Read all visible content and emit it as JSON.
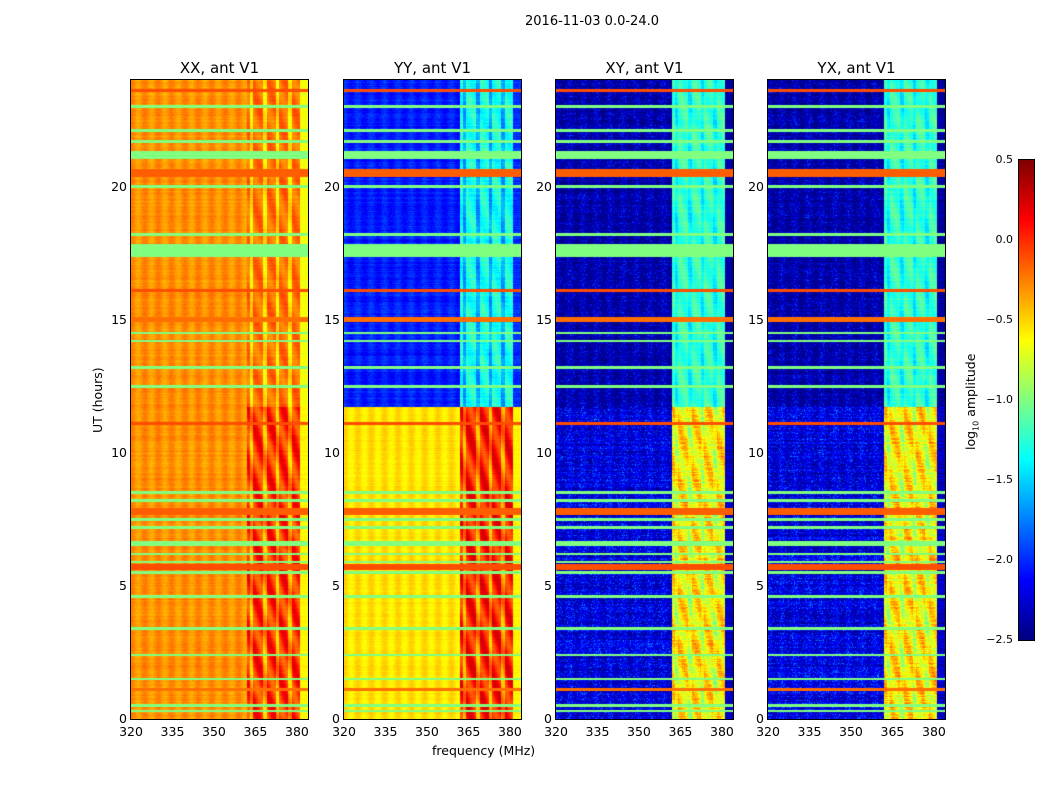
{
  "suptitle": "2016-11-03 0.0-24.0",
  "chart_data": {
    "type": "heatmap",
    "xlabel": "frequency (MHz)",
    "ylabel": "UT (hours)",
    "xlim": [
      320,
      384
    ],
    "ylim": [
      0,
      24
    ],
    "xticks": [
      "320",
      "335",
      "350",
      "365",
      "380"
    ],
    "xtick_values": [
      320,
      335,
      350,
      365,
      380
    ],
    "yticks": [
      "0",
      "5",
      "10",
      "15",
      "20"
    ],
    "ytick_values": [
      0,
      5,
      10,
      15,
      20
    ],
    "colorbar": {
      "label": "log10 amplitude",
      "label_main": "log",
      "label_sub": "10",
      "label_rest": " amplitude",
      "range": [
        -2.5,
        0.5
      ],
      "ticks": [
        "0.5",
        "0.0",
        "−0.5",
        "−1.0",
        "−1.5",
        "−2.0",
        "−2.5"
      ],
      "tick_values": [
        0.5,
        0,
        -0.5,
        -1,
        -1.5,
        -2,
        -2.5
      ],
      "colormap": "jet"
    },
    "panels": [
      {
        "title": "XX, ant V1",
        "segments": [
          {
            "t": [
              0,
              11.7
            ],
            "low": -0.3,
            "high": 0.0,
            "edge": -0.6,
            "noise": 0.08
          },
          {
            "t": [
              11.7,
              24
            ],
            "low": -0.3,
            "high": -0.2,
            "edge": -0.65,
            "noise": 0.08
          }
        ]
      },
      {
        "title": "YY, ant V1",
        "segments": [
          {
            "t": [
              0,
              11.7
            ],
            "low": -0.55,
            "high": 0.05,
            "edge": -0.6,
            "noise": 0.07
          },
          {
            "t": [
              11.7,
              24
            ],
            "low": -2.05,
            "high": -1.3,
            "edge": -2.0,
            "noise": 0.15
          }
        ]
      },
      {
        "title": "XY, ant V1",
        "segments": [
          {
            "t": [
              0,
              11.7
            ],
            "low": -2.25,
            "high": -0.55,
            "edge": -2.3,
            "noise": 0.25
          },
          {
            "t": [
              11.7,
              24
            ],
            "low": -2.4,
            "high": -1.2,
            "edge": -2.4,
            "noise": 0.12
          }
        ]
      },
      {
        "title": "YX, ant V1",
        "segments": [
          {
            "t": [
              0,
              11.7
            ],
            "low": -2.25,
            "high": -0.55,
            "edge": -2.3,
            "noise": 0.25
          },
          {
            "t": [
              11.7,
              24
            ],
            "low": -2.4,
            "high": -1.2,
            "edge": -2.4,
            "noise": 0.12
          }
        ]
      }
    ],
    "rfi_lines": [
      {
        "hour": 0.3,
        "value": -1.0
      },
      {
        "hour": 0.5,
        "value": -1.0
      },
      {
        "hour": 1.1,
        "value": -0.2
      },
      {
        "hour": 1.5,
        "value": -1.0
      },
      {
        "hour": 2.4,
        "value": -1.0
      },
      {
        "hour": 3.4,
        "value": -1.0
      },
      {
        "hour": 4.6,
        "value": -1.0
      },
      {
        "hour": 5.5,
        "value": -1.0
      },
      {
        "hour": 5.7,
        "value": -0.1,
        "width": 0.12
      },
      {
        "hour": 5.9,
        "value": -1.0
      },
      {
        "hour": 6.2,
        "value": -1.0
      },
      {
        "hour": 6.6,
        "value": -1.0,
        "width": 0.1
      },
      {
        "hour": 7.2,
        "value": -1.0
      },
      {
        "hour": 7.5,
        "value": -1.0
      },
      {
        "hour": 7.8,
        "value": -0.15,
        "width": 0.12
      },
      {
        "hour": 8.2,
        "value": -1.0
      },
      {
        "hour": 8.5,
        "value": -1.0
      },
      {
        "hour": 11.1,
        "value": -0.1
      },
      {
        "hour": 12.5,
        "value": -1.0
      },
      {
        "hour": 13.2,
        "value": -1.0
      },
      {
        "hour": 14.2,
        "value": -1.0
      },
      {
        "hour": 14.5,
        "value": -1.0
      },
      {
        "hour": 15.0,
        "value": -0.2,
        "width": 0.1
      },
      {
        "hour": 16.1,
        "value": -0.1
      },
      {
        "hour": 17.6,
        "value": -1.0,
        "width": 0.25
      },
      {
        "hour": 18.2,
        "value": -1.0
      },
      {
        "hour": 20.0,
        "value": -1.0
      },
      {
        "hour": 20.5,
        "value": -0.15,
        "width": 0.15
      },
      {
        "hour": 21.2,
        "value": -1.0,
        "width": 0.15
      },
      {
        "hour": 21.7,
        "value": -1.0
      },
      {
        "hour": 22.1,
        "value": -1.0
      },
      {
        "hour": 23.0,
        "value": -1.0
      },
      {
        "hour": 23.6,
        "value": -0.1
      }
    ]
  }
}
